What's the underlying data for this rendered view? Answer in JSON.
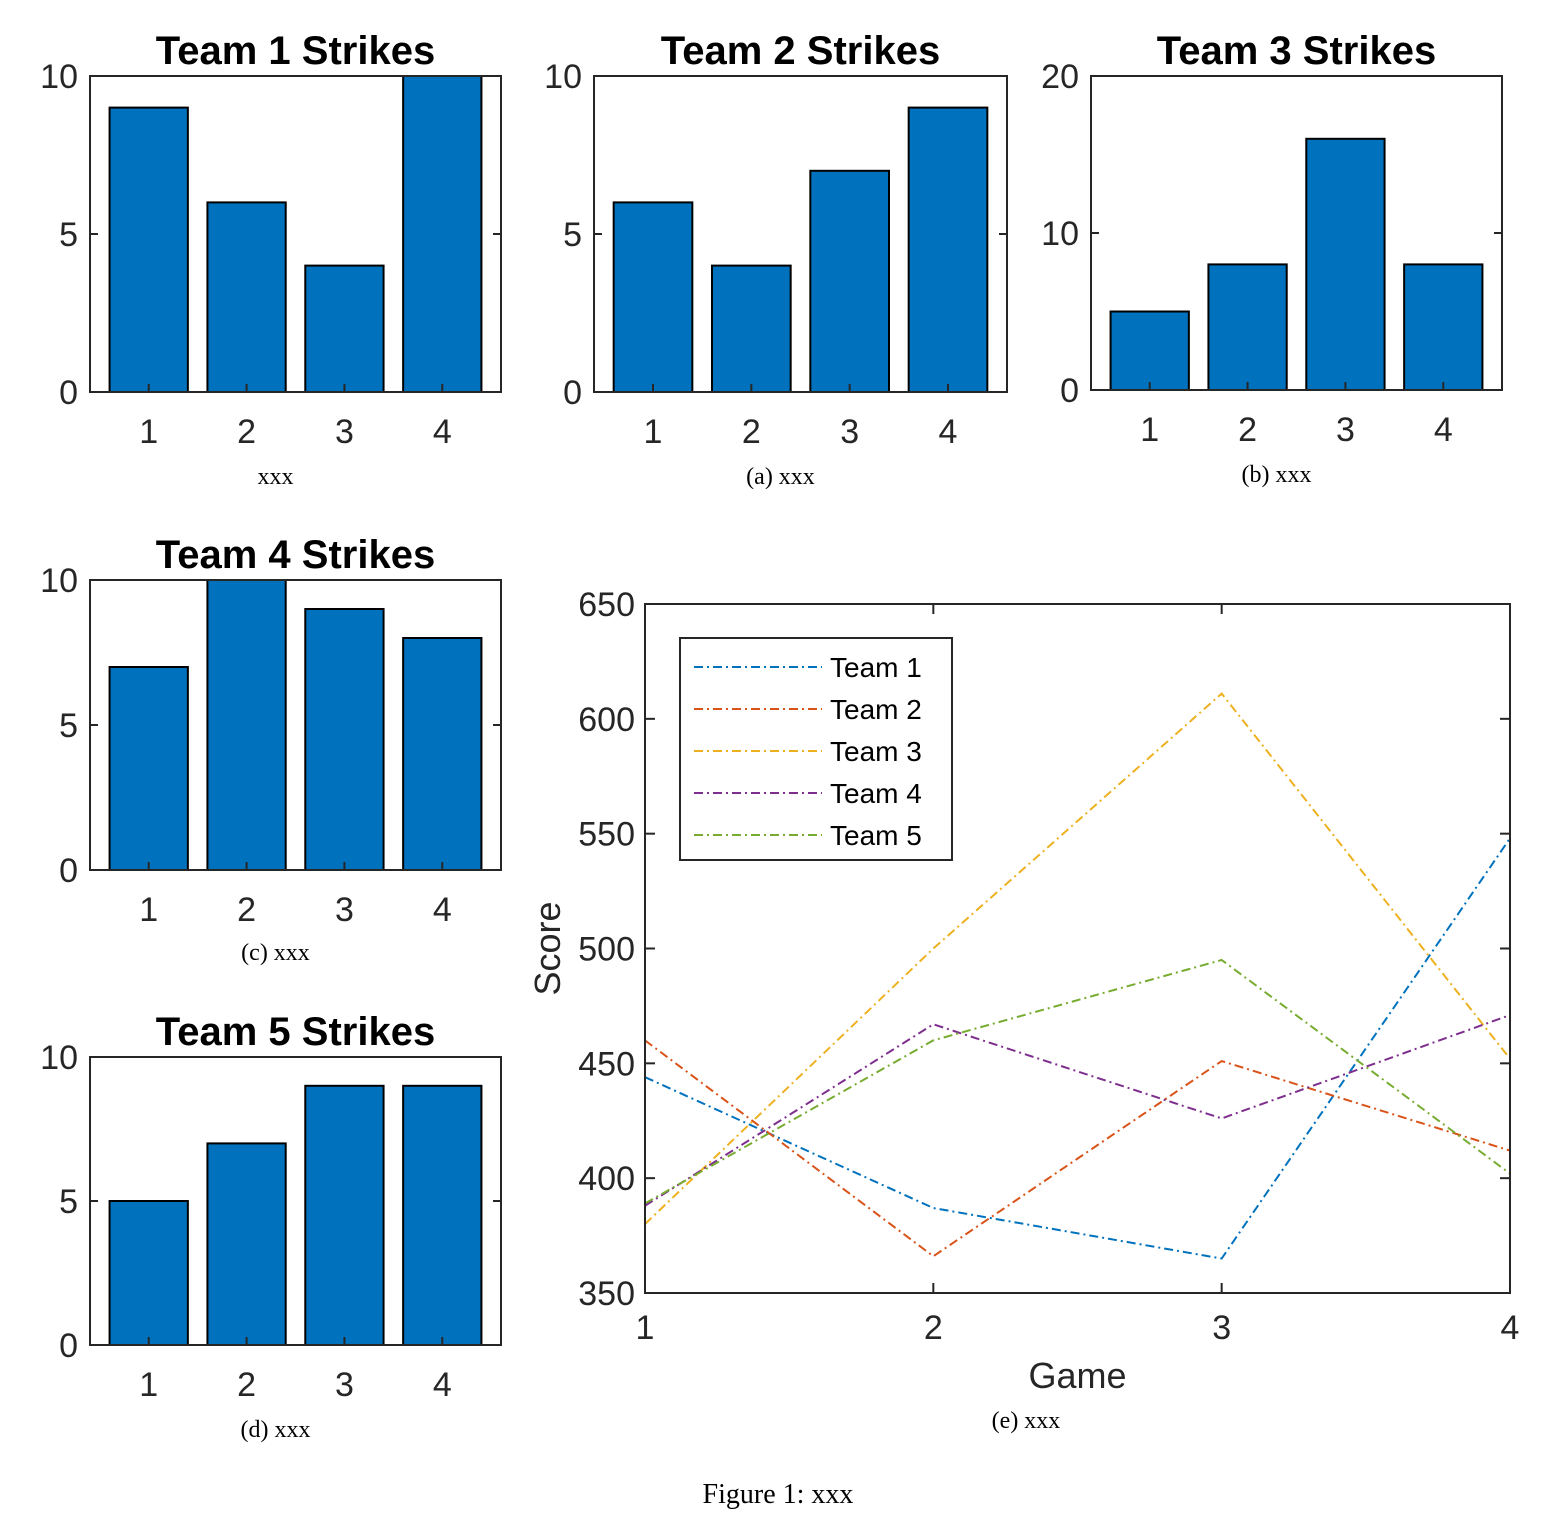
{
  "figure_caption": "Figure 1: xxx",
  "colors": {
    "bar": "#0072BD",
    "team1": "#0072BD",
    "team2": "#D95319",
    "team3": "#EDB120",
    "team4": "#7E2F8E",
    "team5": "#77AC30"
  },
  "chart_data": [
    {
      "type": "bar",
      "title": "Team 1 Strikes",
      "caption": "xxx",
      "categories": [
        "1",
        "2",
        "3",
        "4"
      ],
      "values": [
        9,
        6,
        4,
        10
      ],
      "ylim": [
        0,
        10
      ],
      "yticks": [
        "0",
        "5",
        "10"
      ],
      "xlabel": "",
      "ylabel": ""
    },
    {
      "type": "bar",
      "title": "Team 2 Strikes",
      "caption": "(a) xxx",
      "categories": [
        "1",
        "2",
        "3",
        "4"
      ],
      "values": [
        6,
        4,
        7,
        9
      ],
      "ylim": [
        0,
        10
      ],
      "yticks": [
        "0",
        "5",
        "10"
      ],
      "xlabel": "",
      "ylabel": ""
    },
    {
      "type": "bar",
      "title": "Team 3 Strikes",
      "caption": "(b) xxx",
      "categories": [
        "1",
        "2",
        "3",
        "4"
      ],
      "values": [
        5,
        8,
        16,
        8
      ],
      "ylim": [
        0,
        20
      ],
      "yticks": [
        "0",
        "10",
        "20"
      ],
      "xlabel": "",
      "ylabel": ""
    },
    {
      "type": "bar",
      "title": "Team 4 Strikes",
      "caption": "(c) xxx",
      "categories": [
        "1",
        "2",
        "3",
        "4"
      ],
      "values": [
        7,
        10,
        9,
        8
      ],
      "ylim": [
        0,
        10
      ],
      "yticks": [
        "0",
        "5",
        "10"
      ],
      "xlabel": "",
      "ylabel": ""
    },
    {
      "type": "bar",
      "title": "Team 5 Strikes",
      "caption": "(d) xxx",
      "categories": [
        "1",
        "2",
        "3",
        "4"
      ],
      "values": [
        5,
        7,
        9,
        9
      ],
      "ylim": [
        0,
        10
      ],
      "yticks": [
        "0",
        "5",
        "10"
      ],
      "xlabel": "",
      "ylabel": ""
    },
    {
      "type": "line",
      "title": "",
      "caption": "(e) xxx",
      "xlabel": "Game",
      "ylabel": "Score",
      "x": [
        1,
        2,
        3,
        4
      ],
      "xticks": [
        "1",
        "2",
        "3",
        "4"
      ],
      "xlim": [
        1,
        4
      ],
      "ylim": [
        350,
        650
      ],
      "yticks": [
        "350",
        "400",
        "450",
        "500",
        "550",
        "600",
        "650"
      ],
      "legend_position": "top-left",
      "series": [
        {
          "name": "Team 1",
          "values": [
            444,
            387,
            365,
            548
          ]
        },
        {
          "name": "Team 2",
          "values": [
            460,
            366,
            451,
            412
          ]
        },
        {
          "name": "Team 3",
          "values": [
            380,
            500,
            611,
            452
          ]
        },
        {
          "name": "Team 4",
          "values": [
            388,
            467,
            426,
            471
          ]
        },
        {
          "name": "Team 5",
          "values": [
            389,
            460,
            495,
            402
          ]
        }
      ]
    }
  ]
}
